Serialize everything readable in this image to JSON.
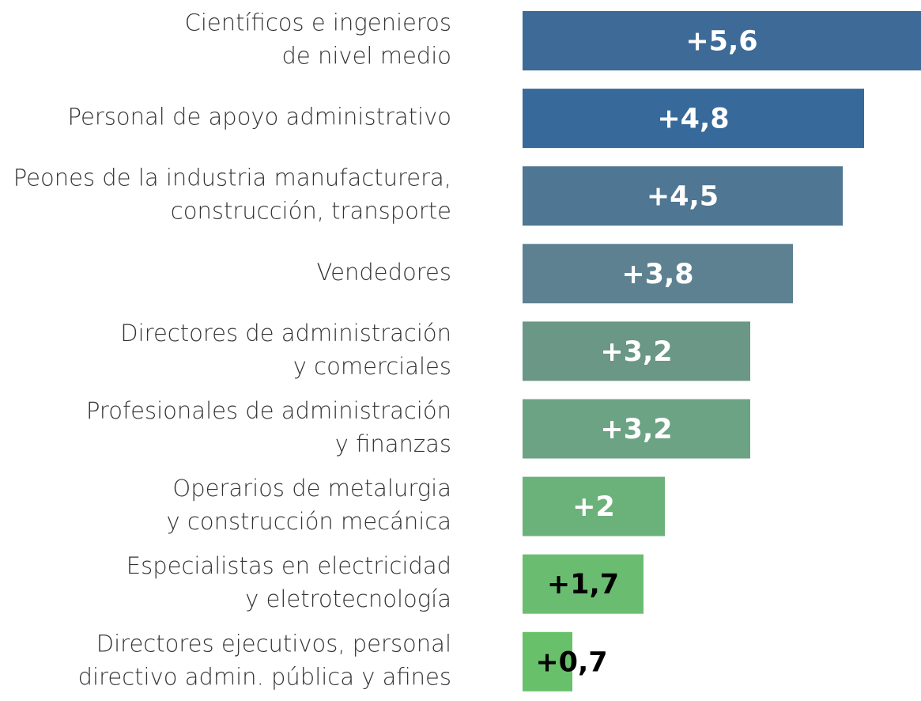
{
  "chart_data": {
    "type": "hbar",
    "categories": [
      "Científicos e ingenieros\nde nivel medio",
      "Personal de apoyo administrativo",
      "Peones de la industria manufacturera,\nconstrucción, transporte",
      "Vendedores",
      "Directores de administración\ny comerciales",
      "Profesionales de administración\ny finanzas",
      "Operarios de metalurgia\ny construcción mecánica",
      "Especialistas en electricidad\ny eletrotecnología",
      "Directores ejecutivos, personal\ndirectivo admin. pública y afines"
    ],
    "values": [
      5.6,
      4.8,
      4.5,
      3.8,
      3.2,
      3.2,
      2,
      1.7,
      0.7
    ],
    "value_labels": [
      "+5,6",
      "+4,8",
      "+4,5",
      "+3,8",
      "+3,2",
      "+3,2",
      "+2",
      "+1,7",
      "+0,7"
    ],
    "colors": [
      "#3e6a98",
      "#376a9b",
      "#4f7692",
      "#5d8190",
      "#6a9786",
      "#6ca384",
      "#6bb27a",
      "#6abd70",
      "#68c16a"
    ],
    "label_colors": [
      "#ffffff",
      "#ffffff",
      "#ffffff",
      "#ffffff",
      "#ffffff",
      "#ffffff",
      "#ffffff",
      "#000000",
      "#000000"
    ]
  }
}
